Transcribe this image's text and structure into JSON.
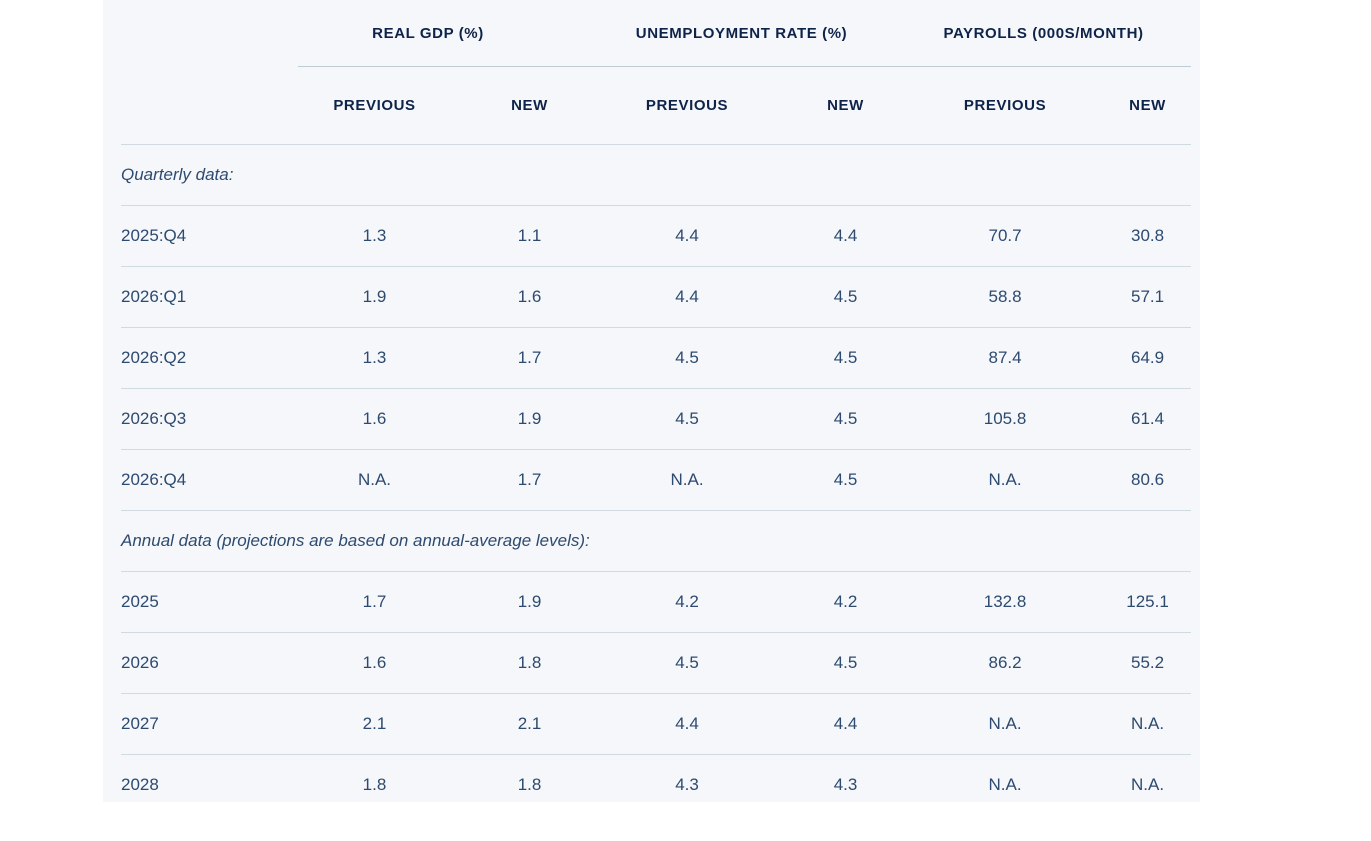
{
  "chart_data": {
    "type": "table",
    "title": "",
    "column_groups": [
      "REAL GDP (%)",
      "UNEMPLOYMENT RATE (%)",
      "PAYROLLS (000S/MONTH)"
    ],
    "sub_columns": [
      "PREVIOUS",
      "NEW"
    ],
    "sections": [
      {
        "label": "Quarterly data:",
        "rows": [
          {
            "label": "2025:Q4",
            "values": [
              "1.3",
              "1.1",
              "4.4",
              "4.4",
              "70.7",
              "30.8"
            ]
          },
          {
            "label": "2026:Q1",
            "values": [
              "1.9",
              "1.6",
              "4.4",
              "4.5",
              "58.8",
              "57.1"
            ]
          },
          {
            "label": "2026:Q2",
            "values": [
              "1.3",
              "1.7",
              "4.5",
              "4.5",
              "87.4",
              "64.9"
            ]
          },
          {
            "label": "2026:Q3",
            "values": [
              "1.6",
              "1.9",
              "4.5",
              "4.5",
              "105.8",
              "61.4"
            ]
          },
          {
            "label": "2026:Q4",
            "values": [
              "N.A.",
              "1.7",
              "N.A.",
              "4.5",
              "N.A.",
              "80.6"
            ]
          }
        ]
      },
      {
        "label": "Annual data (projections are based on annual-average levels):",
        "rows": [
          {
            "label": "2025",
            "values": [
              "1.7",
              "1.9",
              "4.2",
              "4.2",
              "132.8",
              "125.1"
            ]
          },
          {
            "label": "2026",
            "values": [
              "1.6",
              "1.8",
              "4.5",
              "4.5",
              "86.2",
              "55.2"
            ]
          },
          {
            "label": "2027",
            "values": [
              "2.1",
              "2.1",
              "4.4",
              "4.4",
              "N.A.",
              "N.A."
            ]
          },
          {
            "label": "2028",
            "values": [
              "1.8",
              "1.8",
              "4.3",
              "4.3",
              "N.A.",
              "N.A."
            ]
          }
        ]
      }
    ]
  },
  "colors": {
    "panel_background": "#f5f7fa",
    "page_background": "#ffffff",
    "header_text": "#0e2349",
    "data_text": "#2d4a70",
    "header_rule": "#bfccd6",
    "row_rule": "#d0dae1"
  }
}
